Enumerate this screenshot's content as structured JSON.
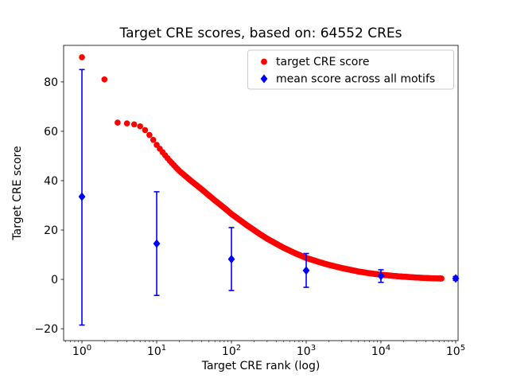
{
  "chart_data": {
    "type": "scatter",
    "title": "Target CRE scores, based on: 64552 CREs",
    "xlabel": "Target CRE rank (log)",
    "ylabel": "Target CRE score",
    "x_scale": "log",
    "grid": false,
    "legend_position": "upper right",
    "xlim_log10": [
      -0.245,
      5.032
    ],
    "ylim": [
      -24.8,
      94.8
    ],
    "x_tick_exponents": [
      0,
      1,
      2,
      3,
      4,
      5
    ],
    "y_ticks": [
      -20,
      0,
      20,
      40,
      60,
      80
    ],
    "series": [
      {
        "name": "target CRE score",
        "marker": "circle",
        "color": "#ff0000",
        "points": [
          [
            1,
            90
          ],
          [
            2,
            81
          ],
          [
            3,
            63.5
          ],
          [
            4,
            63.2
          ],
          [
            5,
            62.8
          ],
          [
            6,
            62.0
          ],
          [
            7,
            60.5
          ],
          [
            8,
            58.5
          ],
          [
            9,
            56.5
          ],
          [
            10,
            54.5
          ],
          [
            12,
            51.5
          ],
          [
            15,
            48
          ],
          [
            20,
            44
          ],
          [
            25,
            41.5
          ],
          [
            30,
            39.5
          ],
          [
            40,
            36.5
          ],
          [
            50,
            34
          ],
          [
            60,
            32
          ],
          [
            80,
            29
          ],
          [
            100,
            26.5
          ],
          [
            130,
            24
          ],
          [
            160,
            22
          ],
          [
            200,
            20
          ],
          [
            250,
            18
          ],
          [
            300,
            16.5
          ],
          [
            400,
            14.4
          ],
          [
            500,
            12.8
          ],
          [
            700,
            10.7
          ],
          [
            1000,
            8.7
          ],
          [
            1500,
            7.0
          ],
          [
            2000,
            5.9
          ],
          [
            3000,
            4.6
          ],
          [
            4000,
            3.8
          ],
          [
            5000,
            3.2
          ],
          [
            7000,
            2.5
          ],
          [
            10000,
            1.9
          ],
          [
            15000,
            1.4
          ],
          [
            20000,
            1.1
          ],
          [
            30000,
            0.75
          ],
          [
            40000,
            0.55
          ],
          [
            50000,
            0.45
          ],
          [
            64552,
            0.35
          ]
        ]
      },
      {
        "name": "mean score across all motifs",
        "marker": "diamond",
        "color": "#0000ff",
        "x": [
          1,
          10,
          100,
          1000,
          10000,
          100000
        ],
        "mean": [
          33.5,
          14.5,
          8.2,
          3.6,
          1.4,
          0.4
        ],
        "err_low": [
          -18.5,
          -6.5,
          -4.5,
          -3.2,
          -1.2,
          -0.4
        ],
        "err_high": [
          85,
          35.5,
          21,
          10.5,
          3.9,
          1.2
        ]
      }
    ]
  }
}
